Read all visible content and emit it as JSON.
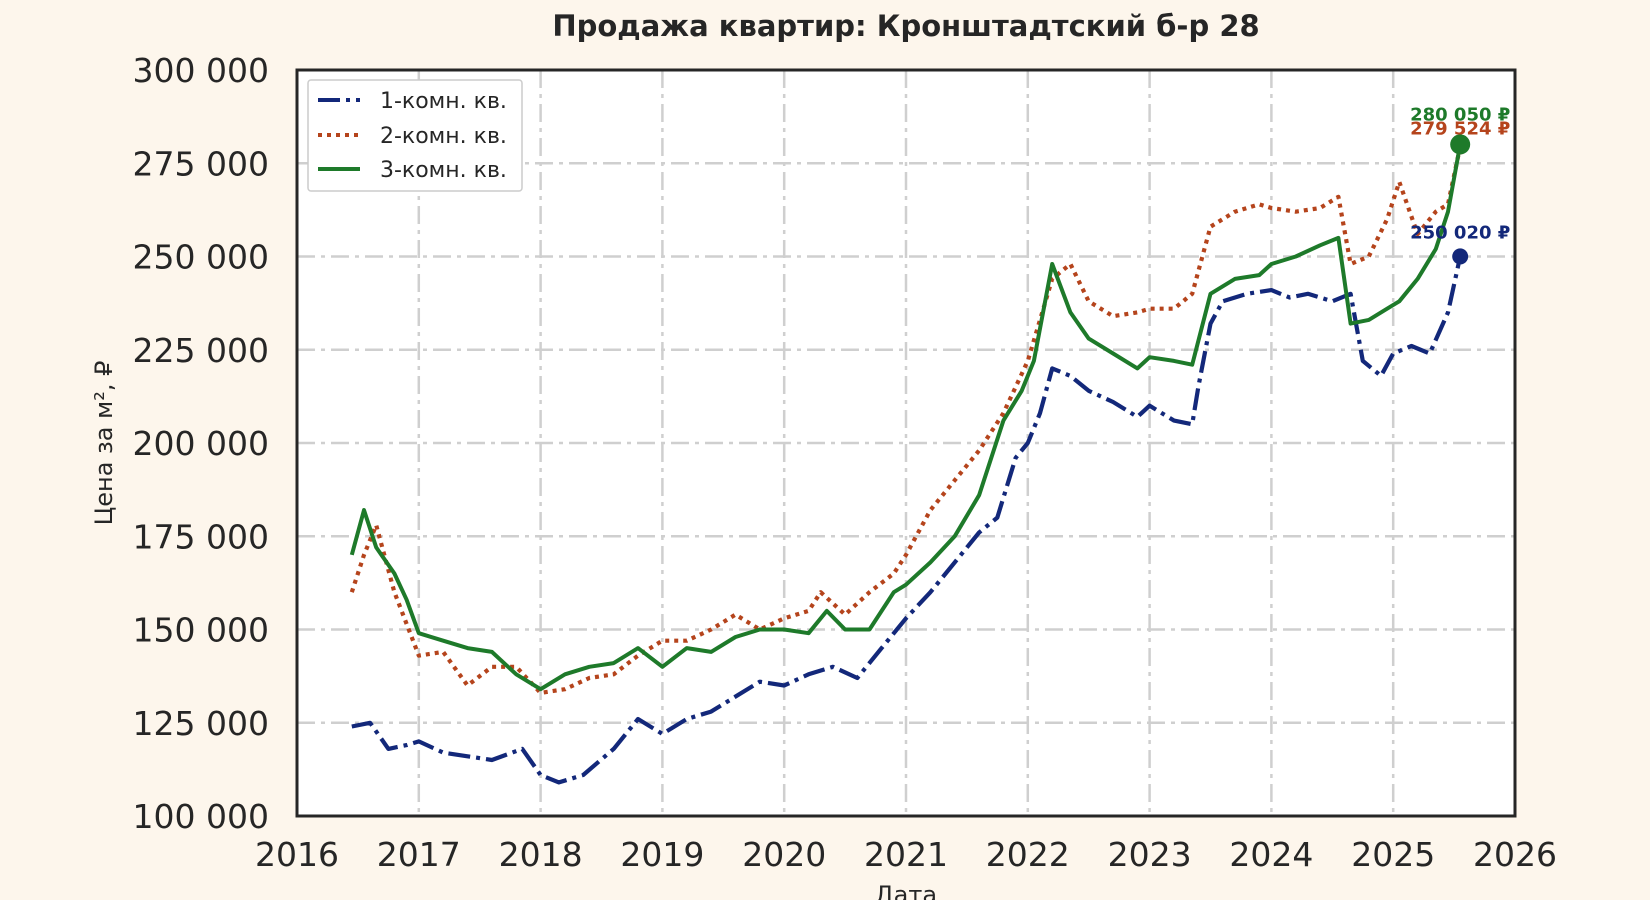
{
  "chart_data": {
    "type": "line",
    "title": "Продажа квартир: Кронштадтский б-р 28",
    "xlabel": "Дата",
    "ylabel": "Цена за м², ₽",
    "xlim": [
      2016.0,
      2026.0
    ],
    "ylim": [
      100000,
      300000
    ],
    "x_ticks": [
      "2016",
      "2017",
      "2018",
      "2019",
      "2020",
      "2021",
      "2022",
      "2023",
      "2024",
      "2025",
      "2026"
    ],
    "y_ticks": [
      "100 000",
      "125 000",
      "150 000",
      "175 000",
      "200 000",
      "225 000",
      "250 000",
      "275 000",
      "300 000"
    ],
    "grid": true,
    "legend_position": "top-left",
    "series": [
      {
        "name": "1-комн. кв.",
        "color": "#13287a",
        "dash": "dash-dot",
        "x": [
          2016.45,
          2016.6,
          2016.75,
          2016.9,
          2017.0,
          2017.2,
          2017.4,
          2017.6,
          2017.85,
          2018.0,
          2018.15,
          2018.35,
          2018.6,
          2018.8,
          2019.0,
          2019.2,
          2019.4,
          2019.6,
          2019.8,
          2020.0,
          2020.2,
          2020.4,
          2020.6,
          2020.8,
          2021.0,
          2021.2,
          2021.4,
          2021.6,
          2021.75,
          2021.9,
          2022.0,
          2022.1,
          2022.2,
          2022.35,
          2022.5,
          2022.7,
          2022.9,
          2023.0,
          2023.2,
          2023.35,
          2023.4,
          2023.5,
          2023.6,
          2023.8,
          2024.0,
          2024.15,
          2024.3,
          2024.5,
          2024.65,
          2024.75,
          2024.9,
          2025.0,
          2025.15,
          2025.3,
          2025.45,
          2025.55
        ],
        "y": [
          124000,
          125000,
          118000,
          119000,
          120000,
          117000,
          116000,
          115000,
          118000,
          111000,
          109000,
          111000,
          118000,
          126000,
          122000,
          126000,
          128000,
          132000,
          136000,
          135000,
          138000,
          140000,
          137000,
          145000,
          153000,
          160000,
          168000,
          176000,
          180000,
          196000,
          200000,
          208000,
          220000,
          218000,
          214000,
          211000,
          207000,
          210000,
          206000,
          205000,
          215000,
          232000,
          238000,
          240000,
          241000,
          239000,
          240000,
          238000,
          240000,
          222000,
          218000,
          224000,
          226000,
          224000,
          235000,
          250020
        ]
      },
      {
        "name": "2-комн. кв.",
        "color": "#b5441c",
        "dash": "dotted",
        "x": [
          2016.45,
          2016.55,
          2016.65,
          2016.8,
          2017.0,
          2017.2,
          2017.4,
          2017.6,
          2017.8,
          2018.0,
          2018.2,
          2018.4,
          2018.6,
          2018.8,
          2019.0,
          2019.2,
          2019.4,
          2019.6,
          2019.8,
          2020.0,
          2020.2,
          2020.3,
          2020.5,
          2020.7,
          2020.9,
          2021.0,
          2021.2,
          2021.4,
          2021.6,
          2021.8,
          2022.0,
          2022.2,
          2022.35,
          2022.5,
          2022.7,
          2022.9,
          2023.0,
          2023.2,
          2023.35,
          2023.5,
          2023.7,
          2023.9,
          2024.0,
          2024.2,
          2024.4,
          2024.55,
          2024.65,
          2024.8,
          2024.95,
          2025.05,
          2025.2,
          2025.35,
          2025.45,
          2025.55
        ],
        "y": [
          160000,
          170000,
          178000,
          160000,
          143000,
          144000,
          135000,
          140000,
          140000,
          133000,
          134000,
          137000,
          138000,
          143000,
          147000,
          147000,
          150000,
          154000,
          150000,
          153000,
          155000,
          160000,
          154000,
          160000,
          165000,
          170000,
          182000,
          190000,
          198000,
          208000,
          222000,
          244000,
          248000,
          238000,
          234000,
          235000,
          236000,
          236000,
          240000,
          258000,
          262000,
          264000,
          263000,
          262000,
          263000,
          266000,
          248000,
          250000,
          260000,
          270000,
          256000,
          262000,
          264000,
          279524
        ]
      },
      {
        "name": "3-комн. кв.",
        "color": "#1e7a2a",
        "dash": "solid",
        "x": [
          2016.45,
          2016.55,
          2016.65,
          2016.8,
          2016.9,
          2017.0,
          2017.2,
          2017.4,
          2017.6,
          2017.8,
          2018.0,
          2018.2,
          2018.4,
          2018.6,
          2018.8,
          2019.0,
          2019.2,
          2019.4,
          2019.6,
          2019.8,
          2020.0,
          2020.2,
          2020.35,
          2020.5,
          2020.7,
          2020.9,
          2021.0,
          2021.2,
          2021.4,
          2021.6,
          2021.8,
          2021.95,
          2022.05,
          2022.2,
          2022.35,
          2022.5,
          2022.7,
          2022.9,
          2023.0,
          2023.2,
          2023.35,
          2023.5,
          2023.7,
          2023.9,
          2024.0,
          2024.2,
          2024.4,
          2024.55,
          2024.65,
          2024.8,
          2024.95,
          2025.05,
          2025.2,
          2025.35,
          2025.45,
          2025.55
        ],
        "y": [
          170000,
          182000,
          172000,
          165000,
          158000,
          149000,
          147000,
          145000,
          144000,
          138000,
          134000,
          138000,
          140000,
          141000,
          145000,
          140000,
          145000,
          144000,
          148000,
          150000,
          150000,
          149000,
          155000,
          150000,
          150000,
          160000,
          162000,
          168000,
          175000,
          186000,
          206000,
          214000,
          222000,
          248000,
          235000,
          228000,
          224000,
          220000,
          223000,
          222000,
          221000,
          240000,
          244000,
          245000,
          248000,
          250000,
          253000,
          255000,
          232000,
          233000,
          236000,
          238000,
          244000,
          252000,
          262000,
          280050
        ]
      }
    ],
    "end_labels": [
      {
        "series": 0,
        "text": "250 020 ₽",
        "x": 2025.55,
        "y": 250020
      },
      {
        "series": 1,
        "text": "279 524 ₽",
        "x": 2025.55,
        "y": 279524
      },
      {
        "series": 2,
        "text": "280 050 ₽",
        "x": 2025.55,
        "y": 280050
      }
    ]
  }
}
